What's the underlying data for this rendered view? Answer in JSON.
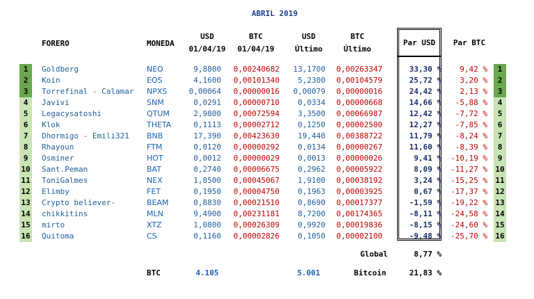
{
  "title": "ABRIL 2019",
  "headers": {
    "forero": "FORERO",
    "moneda": "MONEDA",
    "usd_start_1": "USD",
    "usd_start_2": "01/04/19",
    "btc_start_1": "BTC",
    "btc_start_2": "01/04/19",
    "usd_last_1": "USD",
    "usd_last_2": "Último",
    "btc_last_1": "BTC",
    "btc_last_2": "Último",
    "par_usd": "Par USD",
    "par_btc": "Par BTC"
  },
  "colors": {
    "rank_top": "#6aa84f",
    "rank_other": "#c9e4b4",
    "blue": "#1f5c99",
    "red": "#c00000",
    "navy": "#1a2d66"
  },
  "rows": [
    {
      "rank": "1",
      "forero": "Goldberg",
      "moneda": "NEO",
      "usd_start": "9,8800",
      "btc_start": "0,00240682",
      "usd_last": "13,1700",
      "btc_last": "0,00263347",
      "par_usd": "33,30 %",
      "par_btc": "9,42 %"
    },
    {
      "rank": "2",
      "forero": "Koin",
      "moneda": "EOS",
      "usd_start": "4,1600",
      "btc_start": "0,00101340",
      "usd_last": "5,2300",
      "btc_last": "0,00104579",
      "par_usd": "25,72 %",
      "par_btc": "3,20 %"
    },
    {
      "rank": "3",
      "forero": "Torrefinal - Calamar",
      "moneda": "NPXS",
      "usd_start": "0,00064",
      "btc_start": "0,00000016",
      "usd_last": "0,00079",
      "btc_last": "0,00000016",
      "par_usd": "24,42 %",
      "par_btc": "2,13 %"
    },
    {
      "rank": "4",
      "forero": "Javivi",
      "moneda": "SNM",
      "usd_start": "0,0291",
      "btc_start": "0,00000710",
      "usd_last": "0,0334",
      "btc_last": "0,00000668",
      "par_usd": "14,66 %",
      "par_btc": "-5,88 %"
    },
    {
      "rank": "5",
      "forero": "Legacysatoshi",
      "moneda": "QTUM",
      "usd_start": "2,9800",
      "btc_start": "0,00072594",
      "usd_last": "3,3500",
      "btc_last": "0,00066987",
      "par_usd": "12,42 %",
      "par_btc": "-7,72 %"
    },
    {
      "rank": "6",
      "forero": "Klok",
      "moneda": "THETA",
      "usd_start": "0,1113",
      "btc_start": "0,00002712",
      "usd_last": "0,1250",
      "btc_last": "0,00002500",
      "par_usd": "12,27 %",
      "par_btc": "-7,85 %"
    },
    {
      "rank": "7",
      "forero": "Dhormigo - Emili321",
      "moneda": "BNB",
      "usd_start": "17,390",
      "btc_start": "0,00423630",
      "usd_last": "19,440",
      "btc_last": "0,00388722",
      "par_usd": "11,79 %",
      "par_btc": "-8,24 %"
    },
    {
      "rank": "8",
      "forero": "Rhayoun",
      "moneda": "FTM",
      "usd_start": "0,0120",
      "btc_start": "0,00000292",
      "usd_last": "0,0134",
      "btc_last": "0,00000267",
      "par_usd": "11,60 %",
      "par_btc": "-8,39 %"
    },
    {
      "rank": "9",
      "forero": "Osminer",
      "moneda": "HOT",
      "usd_start": "0,0012",
      "btc_start": "0,00000029",
      "usd_last": "0,0013",
      "btc_last": "0,00000026",
      "par_usd": "9,41 %",
      "par_btc": "-10,19 %"
    },
    {
      "rank": "10",
      "forero": "Sant.Peman",
      "moneda": "BAT",
      "usd_start": "0,2740",
      "btc_start": "0,00006675",
      "usd_last": "0,2962",
      "btc_last": "0,00005922",
      "par_usd": "8,09 %",
      "par_btc": "-11,27 %"
    },
    {
      "rank": "11",
      "forero": "ToniGalmes",
      "moneda": "NEX",
      "usd_start": "1,8500",
      "btc_start": "0,00045067",
      "usd_last": "1,9100",
      "btc_last": "0,00038192",
      "par_usd": "3,24 %",
      "par_btc": "-15,25 %"
    },
    {
      "rank": "12",
      "forero": "Elimby",
      "moneda": "FET",
      "usd_start": "0,1950",
      "btc_start": "0,00004750",
      "usd_last": "0,1963",
      "btc_last": "0,00003925",
      "par_usd": "0,67 %",
      "par_btc": "-17,37 %"
    },
    {
      "rank": "13",
      "forero": "Crypto believer-",
      "moneda": "BEAM",
      "usd_start": "0,8830",
      "btc_start": "0,00021510",
      "usd_last": "0,8690",
      "btc_last": "0,00017377",
      "par_usd": "-1,59 %",
      "par_btc": "-19,22 %"
    },
    {
      "rank": "14",
      "forero": "chikkitins",
      "moneda": "MLN",
      "usd_start": "9,4900",
      "btc_start": "0,00231181",
      "usd_last": "8,7200",
      "btc_last": "0,00174365",
      "par_usd": "-8,11 %",
      "par_btc": "-24,58 %"
    },
    {
      "rank": "15",
      "forero": "mirto",
      "moneda": "XTZ",
      "usd_start": "1,0800",
      "btc_start": "0,00026309",
      "usd_last": "0,9920",
      "btc_last": "0,00019836",
      "par_usd": "-8,15 %",
      "par_btc": "-24,60 %"
    },
    {
      "rank": "16",
      "forero": "Quitoma",
      "moneda": "CS",
      "usd_start": "0,1160",
      "btc_start": "0,00002826",
      "usd_last": "0,1050",
      "btc_last": "0,00002100",
      "par_usd": "-9,48 %",
      "par_btc": "-25,70 %"
    }
  ],
  "summary": {
    "global_label": "Global",
    "global_value": "8,77 %",
    "btc_label": "BTC",
    "btc_start": "4.105",
    "btc_last": "5.001",
    "bitcoin_label": "Bitcoin",
    "bitcoin_value": "21,83 %"
  }
}
